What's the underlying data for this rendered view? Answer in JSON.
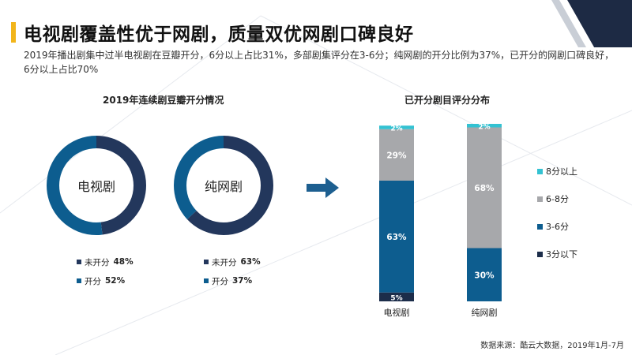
{
  "header": {
    "title": "电视剧覆盖性优于网剧，质量双优网剧口碑良好",
    "subtitle": "2019年播出剧集中过半电视剧在豆瓣开分，6分以上占比31%，多部剧集评分在3-6分；纯网剧的开分比例为37%，已开分的网剧口碑良好，6分以上占比70%"
  },
  "footer": {
    "source": "数据来源：酷云大数据，2019年1月-7月"
  },
  "colors": {
    "accent": "#f2b51a",
    "navy": "#23375c",
    "blue": "#0d5d8f",
    "gray": "#a7a8ab",
    "cyan": "#33c2d2",
    "dark": "#1c2d4a"
  },
  "icons": {
    "arrow": "right-arrow-icon"
  },
  "chart_data": [
    {
      "type": "pie",
      "title": "2019年连续剧豆瓣开分情况",
      "charts": [
        {
          "center_label": "电视剧",
          "slices": [
            {
              "name": "未开分",
              "value": 48,
              "label": "48%",
              "color": "#23375c"
            },
            {
              "name": "开分",
              "value": 52,
              "label": "52%",
              "color": "#0d5d8f"
            }
          ]
        },
        {
          "center_label": "纯网剧",
          "slices": [
            {
              "name": "未开分",
              "value": 63,
              "label": "63%",
              "color": "#23375c"
            },
            {
              "name": "开分",
              "value": 37,
              "label": "37%",
              "color": "#0d5d8f"
            }
          ]
        }
      ]
    },
    {
      "type": "bar",
      "stacked": true,
      "title": "已开分剧目评分分布",
      "categories": [
        "电视剧",
        "纯网剧"
      ],
      "series": [
        {
          "name": "3分以下",
          "color": "#1c2d4a",
          "values": [
            5,
            0
          ],
          "labels": [
            "5%",
            ""
          ]
        },
        {
          "name": "3-6分",
          "color": "#0d5d8f",
          "values": [
            63,
            30
          ],
          "labels": [
            "63%",
            "30%"
          ]
        },
        {
          "name": "6-8分",
          "color": "#a7a8ab",
          "values": [
            29,
            68
          ],
          "labels": [
            "29%",
            "68%"
          ]
        },
        {
          "name": "8分以上",
          "color": "#33c2d2",
          "values": [
            2,
            2
          ],
          "labels": [
            "2%",
            "2%"
          ]
        }
      ],
      "legend_order": [
        "8分以上",
        "6-8分",
        "3-6分",
        "3分以下"
      ],
      "ylim": [
        0,
        100
      ]
    }
  ]
}
